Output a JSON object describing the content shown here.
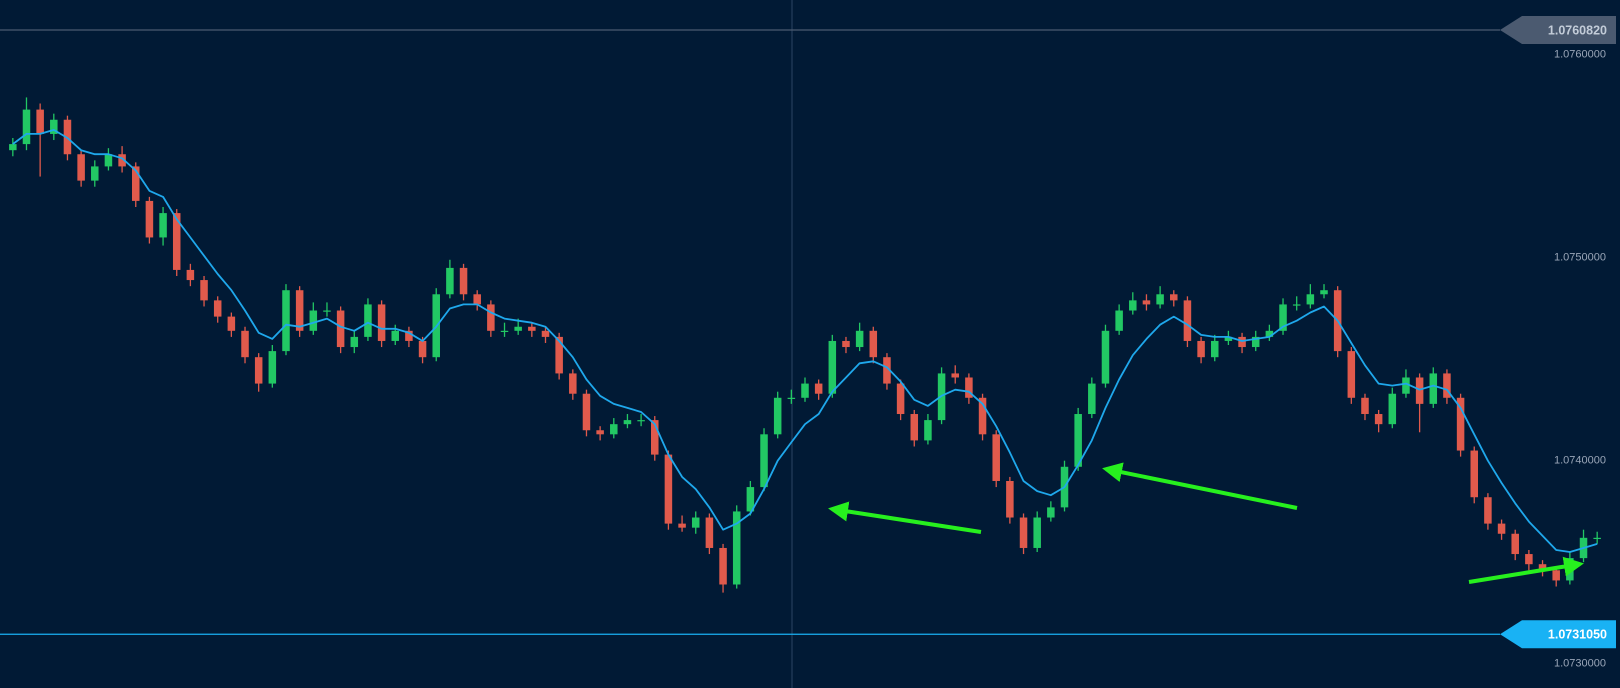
{
  "chart_data": {
    "type": "candlestick",
    "ylim": [
      1.07284,
      1.07623
    ],
    "yticks": [
      {
        "value": 1.073,
        "label": "1.0730000"
      },
      {
        "value": 1.074,
        "label": "1.0740000"
      },
      {
        "value": 1.075,
        "label": "1.0750000"
      },
      {
        "value": 1.076,
        "label": "1.0760000"
      }
    ],
    "grid": false,
    "up_color": "#22c864",
    "down_color": "#e05a4c",
    "ma_color": "#1fa8ec",
    "price_lines": [
      {
        "value": 1.076082,
        "label": "1.0760820",
        "color": "#4b5a70"
      },
      {
        "value": 1.073105,
        "label": "1.0731050",
        "color": "#19b2f4"
      }
    ],
    "open": [
      1.07549,
      1.07552,
      1.07569,
      1.07557,
      1.07564,
      1.07547,
      1.07534,
      1.07541,
      1.07547,
      1.07541,
      1.07524,
      1.07506,
      1.07518,
      1.0749,
      1.07485,
      1.07475,
      1.07467,
      1.0746,
      1.07447,
      1.07434,
      1.0745,
      1.0748,
      1.0746,
      1.0747,
      1.0747,
      1.07452,
      1.07457,
      1.07473,
      1.07455,
      1.0746,
      1.07455,
      1.07447,
      1.07478,
      1.07491,
      1.07478,
      1.07473,
      1.0746,
      1.0746,
      1.07462,
      1.0746,
      1.07457,
      1.07439,
      1.07429,
      1.07411,
      1.07409,
      1.07414,
      1.07416,
      1.07416,
      1.07399,
      1.07365,
      1.07363,
      1.07368,
      1.07353,
      1.07335,
      1.07371,
      1.07383,
      1.07409,
      1.07427,
      1.07427,
      1.07434,
      1.07429,
      1.07455,
      1.07452,
      1.0746,
      1.07447,
      1.07434,
      1.07419,
      1.07406,
      1.07416,
      1.07439,
      1.07437,
      1.07427,
      1.07409,
      1.07386,
      1.07368,
      1.07353,
      1.07368,
      1.07373,
      1.07393,
      1.07419,
      1.07434,
      1.0746,
      1.0747,
      1.07475,
      1.07473,
      1.07478,
      1.07475,
      1.07455,
      1.07447,
      1.07455,
      1.07457,
      1.07452,
      1.07457,
      1.0746,
      1.07473,
      1.07473,
      1.07478,
      1.0748,
      1.0745,
      1.07427,
      1.07419,
      1.07414,
      1.07429,
      1.07437,
      1.07424,
      1.07439,
      1.07427,
      1.07401,
      1.07378,
      1.07365,
      1.0736,
      1.0735,
      1.07345,
      1.07342,
      1.07337,
      1.07348,
      1.07358
    ],
    "high": [
      1.07555,
      1.07575,
      1.07572,
      1.07567,
      1.07566,
      1.07549,
      1.07544,
      1.0755,
      1.07551,
      1.07543,
      1.07526,
      1.07521,
      1.0752,
      1.07493,
      1.07487,
      1.07477,
      1.07469,
      1.07462,
      1.07449,
      1.07453,
      1.07483,
      1.07482,
      1.07474,
      1.07474,
      1.07472,
      1.0746,
      1.07476,
      1.07475,
      1.07463,
      1.07462,
      1.07457,
      1.07481,
      1.07495,
      1.07493,
      1.0748,
      1.07475,
      1.07464,
      1.07466,
      1.07464,
      1.07462,
      1.07459,
      1.07441,
      1.07431,
      1.07413,
      1.07417,
      1.07419,
      1.07419,
      1.07418,
      1.07401,
      1.07369,
      1.07371,
      1.0737,
      1.07355,
      1.07374,
      1.07386,
      1.07412,
      1.0743,
      1.07431,
      1.07437,
      1.07436,
      1.07458,
      1.07457,
      1.07464,
      1.07462,
      1.07449,
      1.07436,
      1.07421,
      1.07419,
      1.07442,
      1.07443,
      1.07439,
      1.07429,
      1.07411,
      1.07388,
      1.0737,
      1.07371,
      1.07376,
      1.07396,
      1.07422,
      1.07437,
      1.07463,
      1.07473,
      1.07479,
      1.07478,
      1.07482,
      1.0748,
      1.07477,
      1.07457,
      1.07458,
      1.0746,
      1.07459,
      1.0746,
      1.07463,
      1.07476,
      1.07477,
      1.07483,
      1.07483,
      1.07482,
      1.07452,
      1.07429,
      1.07421,
      1.07432,
      1.07441,
      1.07439,
      1.07442,
      1.07441,
      1.07429,
      1.07403,
      1.0738,
      1.07367,
      1.07362,
      1.07352,
      1.07347,
      1.07344,
      1.07351,
      1.07362,
      1.07361
    ],
    "low": [
      1.07546,
      1.07549,
      1.07536,
      1.07554,
      1.07544,
      1.07531,
      1.07531,
      1.07539,
      1.07538,
      1.07521,
      1.07503,
      1.07502,
      1.07487,
      1.07482,
      1.07472,
      1.07464,
      1.07457,
      1.07444,
      1.0743,
      1.07432,
      1.07448,
      1.07457,
      1.07458,
      1.07467,
      1.07449,
      1.07449,
      1.07455,
      1.07452,
      1.07453,
      1.07452,
      1.07444,
      1.07445,
      1.07476,
      1.07475,
      1.0747,
      1.07457,
      1.07457,
      1.07458,
      1.07457,
      1.07454,
      1.07436,
      1.07426,
      1.07408,
      1.07406,
      1.07407,
      1.07412,
      1.07413,
      1.07396,
      1.07362,
      1.07361,
      1.0736,
      1.0735,
      1.07331,
      1.07333,
      1.07369,
      1.07381,
      1.07407,
      1.07424,
      1.07425,
      1.07426,
      1.07427,
      1.07449,
      1.0745,
      1.07444,
      1.07431,
      1.07416,
      1.07403,
      1.07404,
      1.07414,
      1.07434,
      1.07424,
      1.07406,
      1.07383,
      1.07365,
      1.0735,
      1.07351,
      1.07366,
      1.07371,
      1.07391,
      1.07417,
      1.07432,
      1.07458,
      1.07468,
      1.0747,
      1.07471,
      1.07472,
      1.07452,
      1.07444,
      1.07445,
      1.07453,
      1.07449,
      1.0745,
      1.07455,
      1.07458,
      1.0747,
      1.07471,
      1.07476,
      1.07447,
      1.07424,
      1.07416,
      1.0741,
      1.07412,
      1.07427,
      1.0741,
      1.07422,
      1.07424,
      1.07398,
      1.07375,
      1.07362,
      1.07357,
      1.07347,
      1.07342,
      1.07339,
      1.07334,
      1.07335,
      1.07346,
      1.07355
    ],
    "close": [
      1.07552,
      1.07569,
      1.07557,
      1.07564,
      1.07547,
      1.07534,
      1.07541,
      1.07547,
      1.07541,
      1.07524,
      1.07506,
      1.07518,
      1.0749,
      1.07485,
      1.07475,
      1.07467,
      1.0746,
      1.07447,
      1.07434,
      1.0745,
      1.0748,
      1.0746,
      1.0747,
      1.0747,
      1.07452,
      1.07457,
      1.07473,
      1.07455,
      1.0746,
      1.07455,
      1.07447,
      1.07478,
      1.07491,
      1.07478,
      1.07473,
      1.0746,
      1.0746,
      1.07462,
      1.0746,
      1.07457,
      1.07439,
      1.07429,
      1.07411,
      1.07409,
      1.07414,
      1.07416,
      1.07416,
      1.07399,
      1.07365,
      1.07363,
      1.07368,
      1.07353,
      1.07335,
      1.07371,
      1.07383,
      1.07409,
      1.07427,
      1.07427,
      1.07434,
      1.07429,
      1.07455,
      1.07452,
      1.0746,
      1.07447,
      1.07434,
      1.07419,
      1.07406,
      1.07416,
      1.07439,
      1.07437,
      1.07427,
      1.07409,
      1.07386,
      1.07368,
      1.07353,
      1.07368,
      1.07373,
      1.07393,
      1.07419,
      1.07434,
      1.0746,
      1.0747,
      1.07475,
      1.07473,
      1.07478,
      1.07475,
      1.07455,
      1.07447,
      1.07455,
      1.07457,
      1.07452,
      1.07457,
      1.0746,
      1.07473,
      1.07473,
      1.07478,
      1.0748,
      1.0745,
      1.07427,
      1.07419,
      1.07414,
      1.07429,
      1.07437,
      1.07424,
      1.07439,
      1.07427,
      1.07401,
      1.07378,
      1.07365,
      1.0736,
      1.0735,
      1.07345,
      1.07342,
      1.07337,
      1.07348,
      1.07358,
      1.07358
    ],
    "ma": [
      1.07552,
      1.07557,
      1.07557,
      1.07559,
      1.07555,
      1.07549,
      1.07547,
      1.07547,
      1.07545,
      1.07539,
      1.07529,
      1.07526,
      1.07515,
      1.07506,
      1.07497,
      1.07488,
      1.0748,
      1.0747,
      1.07459,
      1.07456,
      1.07463,
      1.07462,
      1.07464,
      1.07466,
      1.07462,
      1.0746,
      1.07464,
      1.07461,
      1.07461,
      1.07459,
      1.07455,
      1.07462,
      1.07471,
      1.07473,
      1.07473,
      1.07469,
      1.07466,
      1.07465,
      1.07464,
      1.07462,
      1.07455,
      1.07447,
      1.07436,
      1.07428,
      1.07424,
      1.07422,
      1.0742,
      1.07414,
      1.07399,
      1.07388,
      1.07382,
      1.07373,
      1.07362,
      1.07365,
      1.0737,
      1.07382,
      1.07396,
      1.07405,
      1.07414,
      1.07419,
      1.0743,
      1.07437,
      1.07444,
      1.07445,
      1.07442,
      1.07435,
      1.07426,
      1.07423,
      1.07428,
      1.07431,
      1.0743,
      1.07424,
      1.07413,
      1.074,
      1.07386,
      1.07381,
      1.07379,
      1.07383,
      1.07394,
      1.07406,
      1.07422,
      1.07436,
      1.07448,
      1.07456,
      1.07463,
      1.07467,
      1.07463,
      1.07458,
      1.07457,
      1.07457,
      1.07455,
      1.07456,
      1.07457,
      1.07462,
      1.07465,
      1.07469,
      1.07472,
      1.07465,
      1.07454,
      1.07443,
      1.07434,
      1.07433,
      1.07434,
      1.07431,
      1.07433,
      1.07431,
      1.07422,
      1.07409,
      1.07396,
      1.07385,
      1.07375,
      1.07366,
      1.07359,
      1.07352,
      1.07351,
      1.07353,
      1.07355
    ]
  }
}
